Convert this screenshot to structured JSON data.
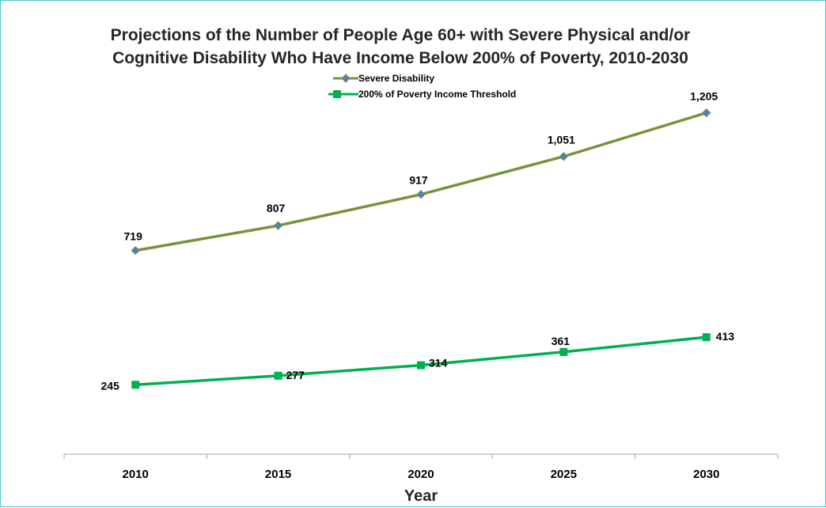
{
  "chart_data": {
    "type": "line",
    "title_line1": "Projections of the Number of People Age 60+ with Severe Physical and/or",
    "title_line2": "Cognitive Disability Who Have Income Below 200% of Poverty, 2010-2030",
    "xlabel": "Year",
    "ylabel": "",
    "categories": [
      "2010",
      "2015",
      "2020",
      "2025",
      "2030"
    ],
    "ylim": [
      0,
      5000
    ],
    "grid": false,
    "legend_position": "top-center",
    "series": [
      {
        "name": "Severe Disability",
        "values": [
          719,
          807,
          917,
          1051,
          1205
        ],
        "labels": [
          "719",
          "807",
          "917",
          "1,051",
          "1,205"
        ],
        "color": "#77933c",
        "marker": "diamond",
        "marker_color": "#4f81bd"
      },
      {
        "name": "200% of Poverty Income Threshold",
        "values": [
          245,
          277,
          314,
          361,
          413
        ],
        "labels": [
          "245",
          "277",
          "314",
          "361",
          "413"
        ],
        "color": "#00b050",
        "marker": "square",
        "marker_color": "#00b050"
      }
    ]
  }
}
